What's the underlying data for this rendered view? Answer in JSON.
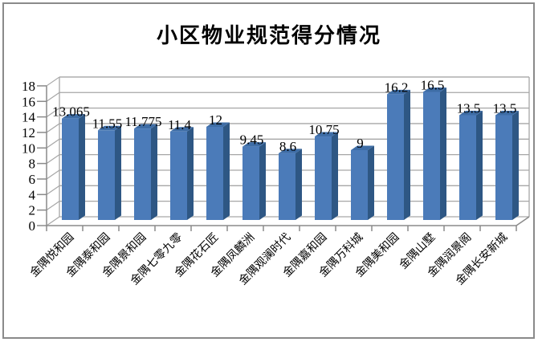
{
  "window": {
    "background": "#ffffff",
    "border_color": "#8a8a8a"
  },
  "chart_data": {
    "type": "bar",
    "style": "3d-column",
    "title": "小区物业规范得分情况",
    "categories": [
      "金隅悦和园",
      "金隅泰和园",
      "金隅景和园",
      "金隅七零九零",
      "金隅花石匠",
      "金隅凤麟洲",
      "金隅观澜时代",
      "金隅嘉和园",
      "金隅万科城",
      "金隅美和园",
      "金隅山墅",
      "金隅润景阁",
      "金隅长安新城"
    ],
    "values": [
      13.065,
      11.55,
      11.775,
      11.4,
      12,
      9.45,
      8.6,
      10.75,
      9,
      16.2,
      16.5,
      13.5,
      13.5
    ],
    "value_labels": [
      "13.065",
      "11.55",
      "11.775",
      "11.4",
      "12",
      "9.45",
      "8.6",
      "10.75",
      "9",
      "16.2",
      "16.5",
      "13.5",
      "13.5"
    ],
    "y_ticks": [
      0,
      2,
      4,
      6,
      8,
      10,
      12,
      14,
      16,
      18
    ],
    "ylim": [
      0,
      18
    ],
    "xlabel": "",
    "ylabel": "",
    "legend": "none",
    "grid": true,
    "colors": {
      "bar_front": "#4b7bb9",
      "bar_top": "#3e6da6",
      "bar_side": "#2e5784",
      "gridline": "#a6a6a6",
      "axis": "#8a8a8a",
      "text": "#000000"
    }
  }
}
